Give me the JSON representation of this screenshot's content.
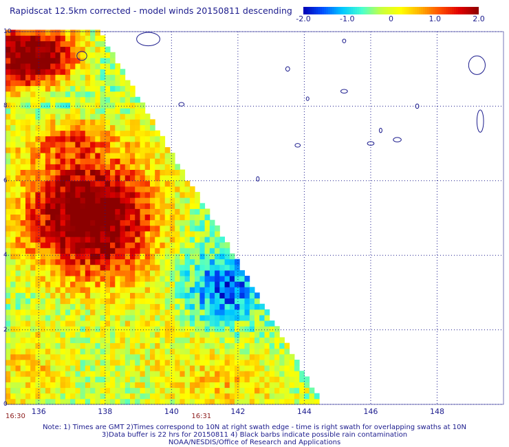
{
  "title": "Rapidscat 12.5km corrected - model winds 20150811 descending",
  "colorbar": {
    "ticks": [
      "-2.0",
      "-1.0",
      "0",
      "1.0",
      "2.0"
    ],
    "tick_values": [
      -2.0,
      -1.0,
      0.0,
      1.0,
      2.0
    ],
    "range": [
      -2.0,
      2.0
    ],
    "colors": [
      "#0000b4",
      "#0050ff",
      "#00c8ff",
      "#48ffd0",
      "#c8ff40",
      "#ffff00",
      "#ffb000",
      "#ff5000",
      "#e00000",
      "#8c0000"
    ]
  },
  "map": {
    "lon_range": [
      135,
      150
    ],
    "lat_range": [
      0,
      10
    ],
    "lat_ticks": [
      "0",
      "2",
      "4",
      "6",
      "8",
      "10"
    ],
    "lat_tick_values": [
      0,
      2,
      4,
      6,
      8,
      10
    ],
    "lon_ticks": [
      "136",
      "138",
      "140",
      "142",
      "144",
      "146",
      "148"
    ],
    "lon_tick_values": [
      136,
      138,
      140,
      142,
      144,
      146,
      148
    ],
    "swath_edge": {
      "top_lon": 137.9,
      "bottom_lon": 144.6
    },
    "grid_style": "dotted"
  },
  "times": [
    {
      "label": "16:30",
      "lon": 135.3
    },
    {
      "label": "16:31",
      "lon": 140.9
    }
  ],
  "notes": [
    "Note: 1) Times are GMT 2)Times correspond to 10N at right swath edge - time is right swath for overlapping swaths at 10N",
    "3)Data buffer is 22 hrs for 20150811 4) Black barbs indicate possible rain contamination",
    "NOAA/NESDIS/Office of Research and Applications"
  ]
}
